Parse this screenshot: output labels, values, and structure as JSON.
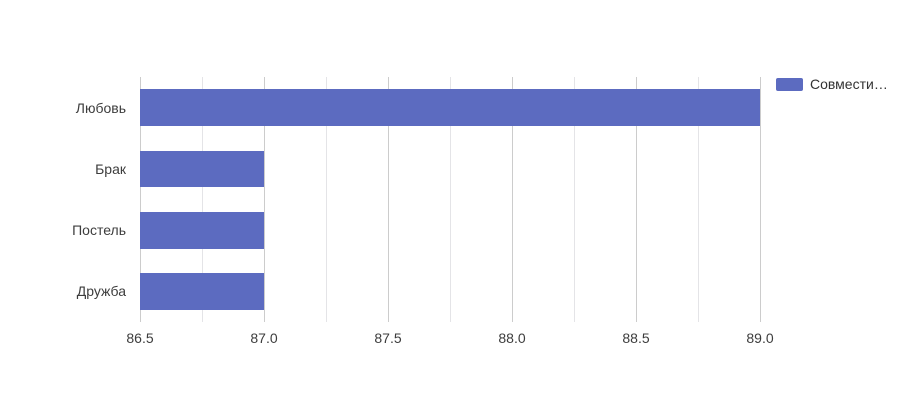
{
  "chart_data": {
    "type": "bar",
    "orientation": "horizontal",
    "title": "",
    "xlabel": "",
    "ylabel": "",
    "categories": [
      "Любовь",
      "Брак",
      "Постель",
      "Дружба"
    ],
    "series": [
      {
        "name": "Совмести…",
        "values": [
          89,
          87,
          87,
          87
        ]
      }
    ],
    "xlim": [
      86.5,
      89.0
    ],
    "x_ticks": [
      86.5,
      87.0,
      87.5,
      88.0,
      88.5,
      89.0
    ],
    "x_tick_labels": [
      "86.5",
      "87.0",
      "87.5",
      "88.0",
      "88.5",
      "89.0"
    ],
    "gridline_step": 0.25,
    "grid": "vertical-only",
    "legend_position": "top-right",
    "legend": {
      "label": "Совмести…"
    },
    "colors": {
      "bar": "#5c6bc0",
      "grid_major": "#cccccc",
      "grid_minor": "#e4e4e7",
      "axis_text": "#3d3d3d",
      "legend_text": "#333333",
      "background": "#ffffff"
    }
  }
}
